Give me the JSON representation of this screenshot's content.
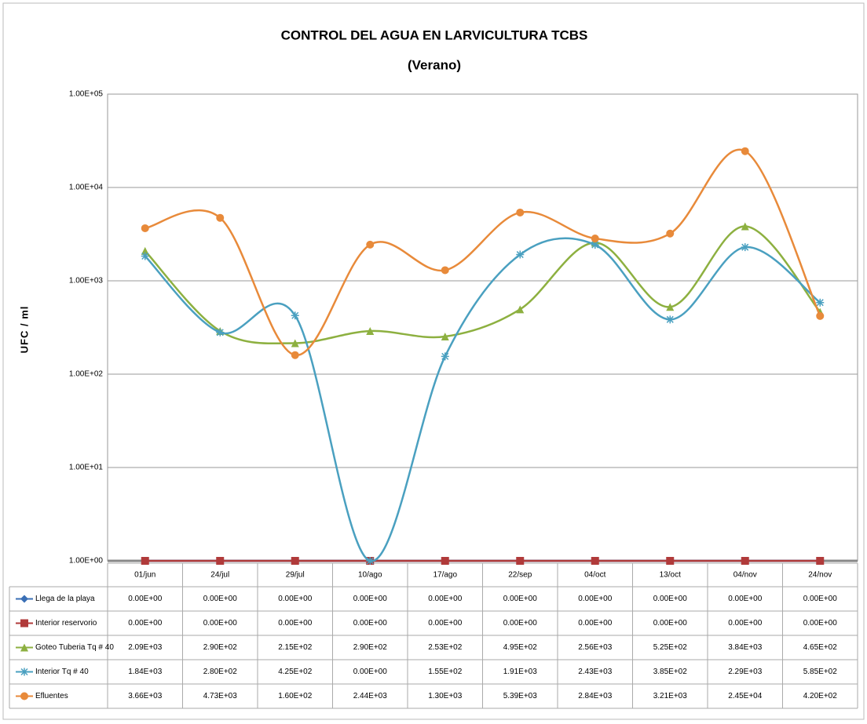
{
  "chart_data": {
    "type": "line",
    "title": "CONTROL DEL AGUA EN LARVICULTURA TCBS",
    "subtitle": "(Verano)",
    "y_label": "UFC / ml",
    "y_scale": "log",
    "grid": true,
    "categories": [
      "01/jun",
      "24/jul",
      "29/jul",
      "10/ago",
      "17/ago",
      "22/sep",
      "04/oct",
      "13/oct",
      "04/nov",
      "24/nov"
    ],
    "ylim": [
      1,
      100000
    ],
    "yticks": [
      {
        "value": 1,
        "label": "1.00E+00"
      },
      {
        "value": 10,
        "label": "1.00E+01"
      },
      {
        "value": 100,
        "label": "1.00E+02"
      },
      {
        "value": 1000,
        "label": "1.00E+03"
      },
      {
        "value": 10000,
        "label": "1.00E+04"
      },
      {
        "value": 100000,
        "label": "1.00E+05"
      }
    ],
    "series": [
      {
        "name": "Llega de la playa",
        "color": "#3a6fb5",
        "marker": "diamond",
        "smooth": true,
        "values": [
          0,
          0,
          0,
          0,
          0,
          0,
          0,
          0,
          0,
          0
        ],
        "value_labels": [
          "0.00E+00",
          "0.00E+00",
          "0.00E+00",
          "0.00E+00",
          "0.00E+00",
          "0.00E+00",
          "0.00E+00",
          "0.00E+00",
          "0.00E+00",
          "0.00E+00"
        ]
      },
      {
        "name": "Interior reservorio",
        "color": "#b03a3a",
        "marker": "square",
        "smooth": true,
        "values": [
          0,
          0,
          0,
          0,
          0,
          0,
          0,
          0,
          0,
          0
        ],
        "value_labels": [
          "0.00E+00",
          "0.00E+00",
          "0.00E+00",
          "0.00E+00",
          "0.00E+00",
          "0.00E+00",
          "0.00E+00",
          "0.00E+00",
          "0.00E+00",
          "0.00E+00"
        ]
      },
      {
        "name": "Goteo Tuberia Tq # 40",
        "color": "#8db040",
        "marker": "triangle",
        "smooth": true,
        "values": [
          2090,
          290,
          215,
          290,
          253,
          495,
          2560,
          525,
          3840,
          465
        ],
        "value_labels": [
          "2.09E+03",
          "2.90E+02",
          "2.15E+02",
          "2.90E+02",
          "2.53E+02",
          "4.95E+02",
          "2.56E+03",
          "5.25E+02",
          "3.84E+03",
          "4.65E+02"
        ]
      },
      {
        "name": "Interior Tq # 40",
        "color": "#4aa0c0",
        "marker": "asterisk",
        "smooth": true,
        "values": [
          1840,
          280,
          425,
          0,
          155,
          1910,
          2430,
          385,
          2290,
          585
        ],
        "value_labels": [
          "1.84E+03",
          "2.80E+02",
          "4.25E+02",
          "0.00E+00",
          "1.55E+02",
          "1.91E+03",
          "2.43E+03",
          "3.85E+02",
          "2.29E+03",
          "5.85E+02"
        ]
      },
      {
        "name": "Efluentes",
        "color": "#e88a3a",
        "marker": "circle",
        "smooth": true,
        "values": [
          3660,
          4730,
          160,
          2440,
          1300,
          5390,
          2840,
          3210,
          24500,
          420
        ],
        "value_labels": [
          "3.66E+03",
          "4.73E+03",
          "1.60E+02",
          "2.44E+03",
          "1.30E+03",
          "5.39E+03",
          "2.84E+03",
          "3.21E+03",
          "2.45E+04",
          "4.20E+02"
        ]
      }
    ]
  }
}
